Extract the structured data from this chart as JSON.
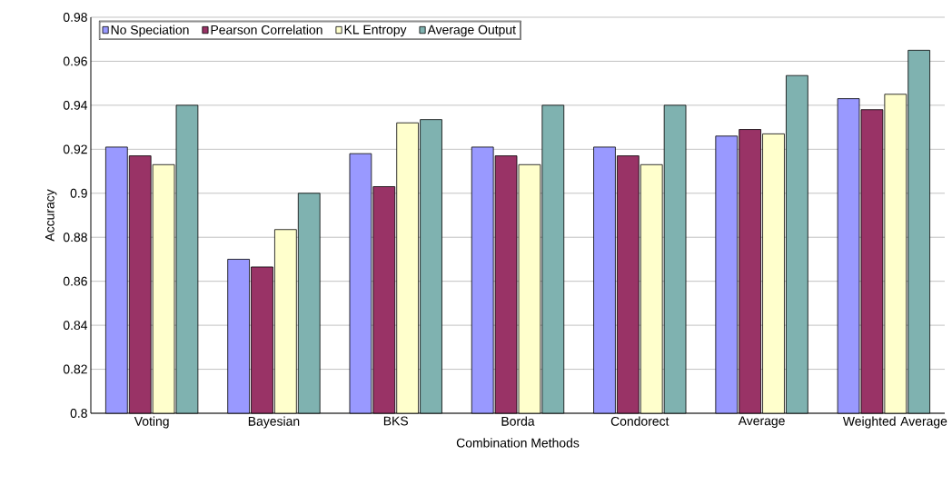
{
  "chart_data": {
    "type": "bar",
    "xlabel": "Combination Methods",
    "ylabel": "Accuracy",
    "categories": [
      "Voting",
      "Bayesian",
      "BKS",
      "Borda",
      "Condorect",
      "Average",
      "Weighted Average"
    ],
    "series": [
      {
        "name": "No Speciation",
        "color": "#9999ff",
        "values": [
          0.921,
          0.87,
          0.918,
          0.921,
          0.921,
          0.926,
          0.943
        ]
      },
      {
        "name": "Pearson Correlation",
        "color": "#993366",
        "values": [
          0.917,
          0.8665,
          0.903,
          0.917,
          0.917,
          0.929,
          0.938
        ]
      },
      {
        "name": "KL Entropy",
        "color": "#ffffcc",
        "values": [
          0.913,
          0.8835,
          0.932,
          0.913,
          0.913,
          0.927,
          0.945
        ]
      },
      {
        "name": "Average Output",
        "color": "#7fb2b0",
        "values": [
          0.94,
          0.9,
          0.9335,
          0.94,
          0.94,
          0.9535,
          0.965
        ]
      }
    ],
    "ylim": [
      0.8,
      0.98
    ],
    "yticks": [
      0.8,
      0.82,
      0.84,
      0.86,
      0.88,
      0.9,
      0.92,
      0.94,
      0.96,
      0.98
    ],
    "grid": "y",
    "legend": "top left"
  }
}
